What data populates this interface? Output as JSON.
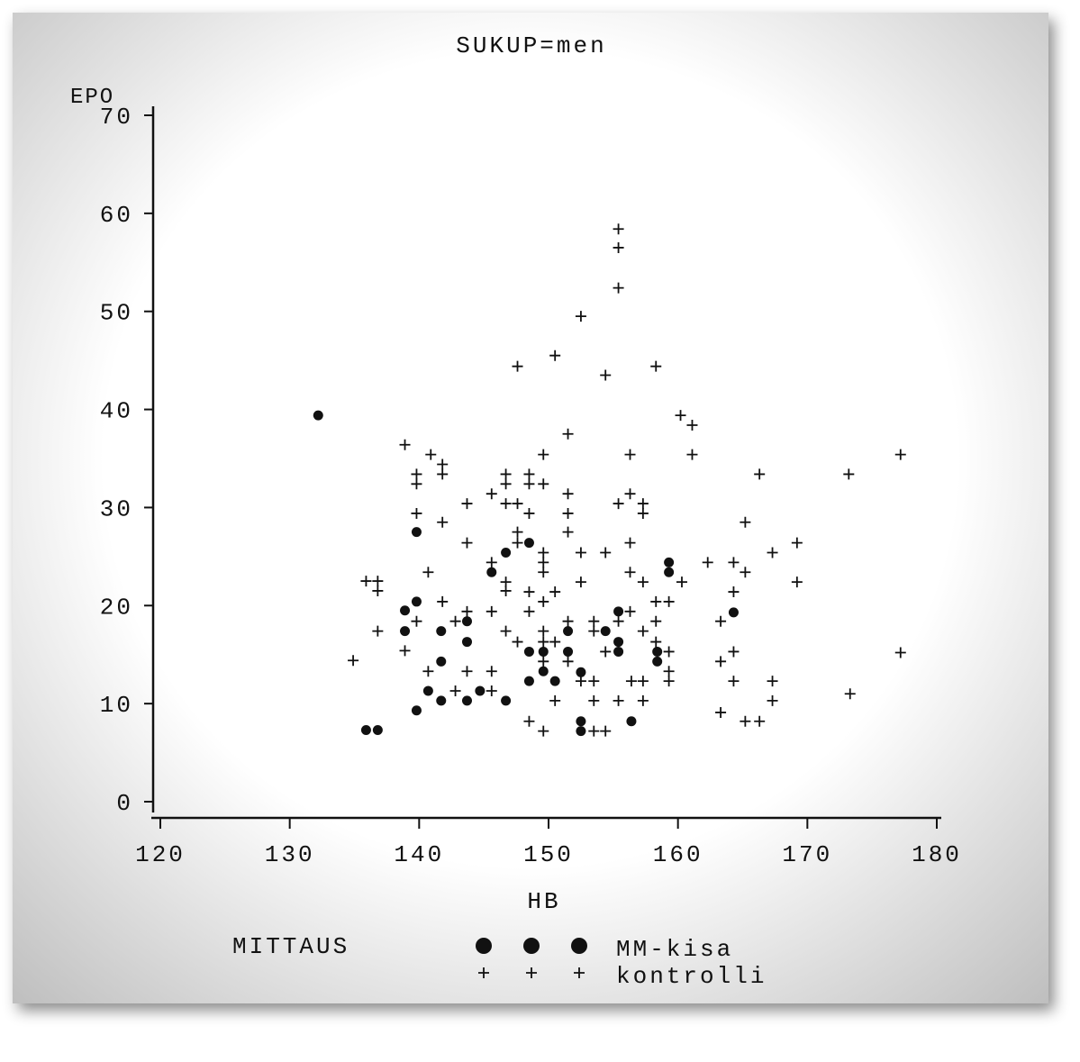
{
  "chart_data": {
    "type": "scatter",
    "title": "SUKUP=men",
    "x_label": "HB",
    "y_label": "EPO",
    "legend_title": "MITTAUS",
    "legend": "bottom",
    "xlim": [
      120,
      180
    ],
    "ylim": [
      0,
      70
    ],
    "xticks": [
      120,
      130,
      140,
      150,
      160,
      170,
      180
    ],
    "yticks": [
      0,
      10,
      20,
      30,
      40,
      50,
      60,
      70
    ],
    "series": [
      {
        "name": "MM-kisa",
        "color": "#111111",
        "marker": "circle",
        "x": [
          132.2,
          135.9,
          136.8,
          138.9,
          138.9,
          139.8,
          139.8,
          139.8,
          140.7,
          141.7,
          141.7,
          141.7,
          143.7,
          143.7,
          143.7,
          144.7,
          145.6,
          146.7,
          146.7,
          148.5,
          148.5,
          148.5,
          149.6,
          149.6,
          150.5,
          151.5,
          151.5,
          152.5,
          152.5,
          152.5,
          154.4,
          155.4,
          155.4,
          155.4,
          156.4,
          158.4,
          158.4,
          159.3,
          159.3,
          164.3
        ],
        "y": [
          39.4,
          7.3,
          7.3,
          19.5,
          17.4,
          27.5,
          20.4,
          9.3,
          11.3,
          17.4,
          14.3,
          10.3,
          18.4,
          16.3,
          10.3,
          11.3,
          23.4,
          25.4,
          10.3,
          26.4,
          15.3,
          12.3,
          15.3,
          13.3,
          12.3,
          17.4,
          15.3,
          13.2,
          8.2,
          7.2,
          17.4,
          19.4,
          16.3,
          15.3,
          8.2,
          15.3,
          14.3,
          24.4,
          23.4,
          19.3
        ]
      },
      {
        "name": "kontrolli",
        "color": "#111111",
        "marker": "plus",
        "x": [
          134.9,
          135.9,
          136.8,
          136.8,
          136.8,
          138.9,
          138.9,
          139.8,
          139.8,
          139.8,
          139.8,
          140.7,
          140.7,
          140.9,
          141.8,
          141.8,
          141.8,
          141.8,
          142.8,
          142.8,
          143.7,
          143.7,
          143.7,
          143.7,
          145.6,
          145.6,
          145.6,
          145.6,
          145.6,
          146.7,
          146.7,
          146.7,
          146.7,
          146.7,
          146.7,
          147.6,
          147.6,
          147.6,
          147.6,
          147.6,
          148.5,
          148.5,
          148.5,
          148.5,
          148.5,
          148.5,
          149.6,
          149.6,
          149.6,
          149.6,
          149.6,
          149.6,
          149.6,
          149.6,
          149.6,
          149.6,
          150.5,
          150.5,
          150.5,
          150.5,
          151.5,
          151.5,
          151.5,
          151.5,
          151.5,
          151.5,
          152.5,
          152.5,
          152.5,
          152.5,
          153.5,
          153.5,
          153.5,
          153.5,
          153.5,
          154.4,
          154.4,
          154.4,
          154.4,
          155.4,
          155.4,
          155.4,
          155.4,
          155.4,
          155.4,
          156.3,
          156.3,
          156.3,
          156.3,
          156.3,
          156.4,
          157.3,
          157.3,
          157.3,
          157.3,
          157.3,
          157.3,
          158.3,
          158.3,
          158.3,
          158.3,
          159.3,
          159.3,
          159.3,
          159.3,
          160.2,
          160.3,
          161.1,
          161.1,
          162.3,
          163.3,
          163.3,
          163.3,
          164.3,
          164.3,
          164.3,
          164.3,
          165.2,
          165.2,
          165.2,
          166.3,
          166.3,
          167.3,
          167.3,
          167.3,
          169.2,
          169.2,
          173.2,
          173.3,
          177.2,
          177.2
        ],
        "y": [
          14.4,
          22.5,
          22.5,
          21.5,
          17.4,
          36.4,
          15.4,
          33.4,
          32.4,
          29.4,
          18.4,
          23.4,
          13.3,
          35.4,
          34.4,
          33.4,
          28.5,
          20.4,
          18.4,
          11.3,
          30.4,
          26.4,
          19.4,
          13.3,
          31.4,
          19.4,
          13.3,
          11.3,
          24.4,
          33.4,
          32.4,
          30.4,
          22.4,
          21.5,
          17.4,
          30.4,
          27.5,
          26.4,
          16.3,
          44.4,
          33.4,
          32.4,
          29.4,
          21.4,
          19.4,
          8.2,
          32.4,
          25.4,
          24.4,
          23.4,
          35.4,
          20.4,
          17.4,
          16.3,
          14.3,
          7.2,
          21.4,
          16.3,
          10.3,
          45.5,
          37.5,
          31.4,
          29.4,
          27.5,
          18.4,
          14.3,
          49.5,
          25.4,
          22.4,
          12.3,
          18.4,
          17.4,
          12.3,
          10.3,
          7.2,
          43.5,
          25.4,
          15.3,
          7.2,
          58.4,
          56.5,
          52.4,
          30.4,
          18.4,
          10.3,
          35.4,
          31.4,
          26.4,
          23.4,
          19.4,
          12.3,
          30.4,
          29.4,
          22.4,
          17.4,
          12.3,
          10.3,
          44.4,
          18.4,
          20.4,
          16.3,
          20.4,
          15.3,
          13.3,
          12.3,
          39.4,
          22.4,
          38.4,
          35.4,
          24.4,
          18.4,
          14.3,
          9.1,
          24.4,
          21.4,
          15.3,
          12.3,
          23.4,
          28.5,
          8.2,
          8.2,
          33.4,
          25.4,
          12.3,
          10.3,
          26.4,
          22.4,
          33.4,
          11.0,
          35.4,
          15.2
        ]
      }
    ]
  }
}
